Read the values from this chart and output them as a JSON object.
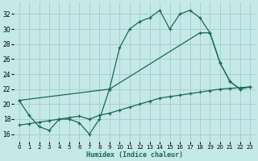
{
  "xlabel": "Humidex (Indice chaleur)",
  "bg_color": "#c5e8e8",
  "grid_color": "#a8d0d0",
  "line_color": "#1a6858",
  "ylim": [
    15.0,
    33.5
  ],
  "xlim": [
    -0.5,
    23.5
  ],
  "yticks": [
    16,
    18,
    20,
    22,
    24,
    26,
    28,
    30,
    32
  ],
  "xticks": [
    0,
    1,
    2,
    3,
    4,
    5,
    6,
    7,
    8,
    9,
    10,
    11,
    12,
    13,
    14,
    15,
    16,
    17,
    18,
    19,
    20,
    21,
    22,
    23
  ],
  "line1_x": [
    0,
    1,
    2,
    3,
    4,
    5,
    6,
    7,
    8,
    9,
    10,
    11,
    12,
    13,
    14,
    15,
    16,
    17,
    18,
    19,
    20,
    21,
    22
  ],
  "line1_y": [
    20.5,
    18.5,
    17.0,
    16.5,
    18.0,
    18.0,
    17.5,
    16.0,
    18.0,
    22.0,
    27.5,
    30.0,
    31.0,
    31.5,
    32.5,
    30.0,
    32.0,
    32.5,
    31.5,
    29.5,
    25.5,
    23.0,
    22.0
  ],
  "line2_x": [
    0,
    1,
    2,
    3,
    4,
    5,
    6,
    7,
    8,
    9,
    10,
    11,
    12,
    13,
    14,
    15,
    16,
    17,
    18,
    19,
    20,
    21,
    22,
    23
  ],
  "line2_y": [
    17.2,
    17.4,
    17.6,
    17.8,
    18.0,
    18.2,
    18.4,
    18.0,
    18.5,
    18.8,
    19.2,
    19.6,
    20.0,
    20.4,
    20.8,
    21.0,
    21.2,
    21.4,
    21.6,
    21.8,
    22.0,
    22.1,
    22.2,
    22.3
  ],
  "line3_x": [
    0,
    9,
    18,
    19,
    20,
    21,
    22,
    23
  ],
  "line3_y": [
    20.5,
    22.0,
    29.5,
    29.5,
    25.5,
    23.0,
    22.0,
    22.3
  ]
}
